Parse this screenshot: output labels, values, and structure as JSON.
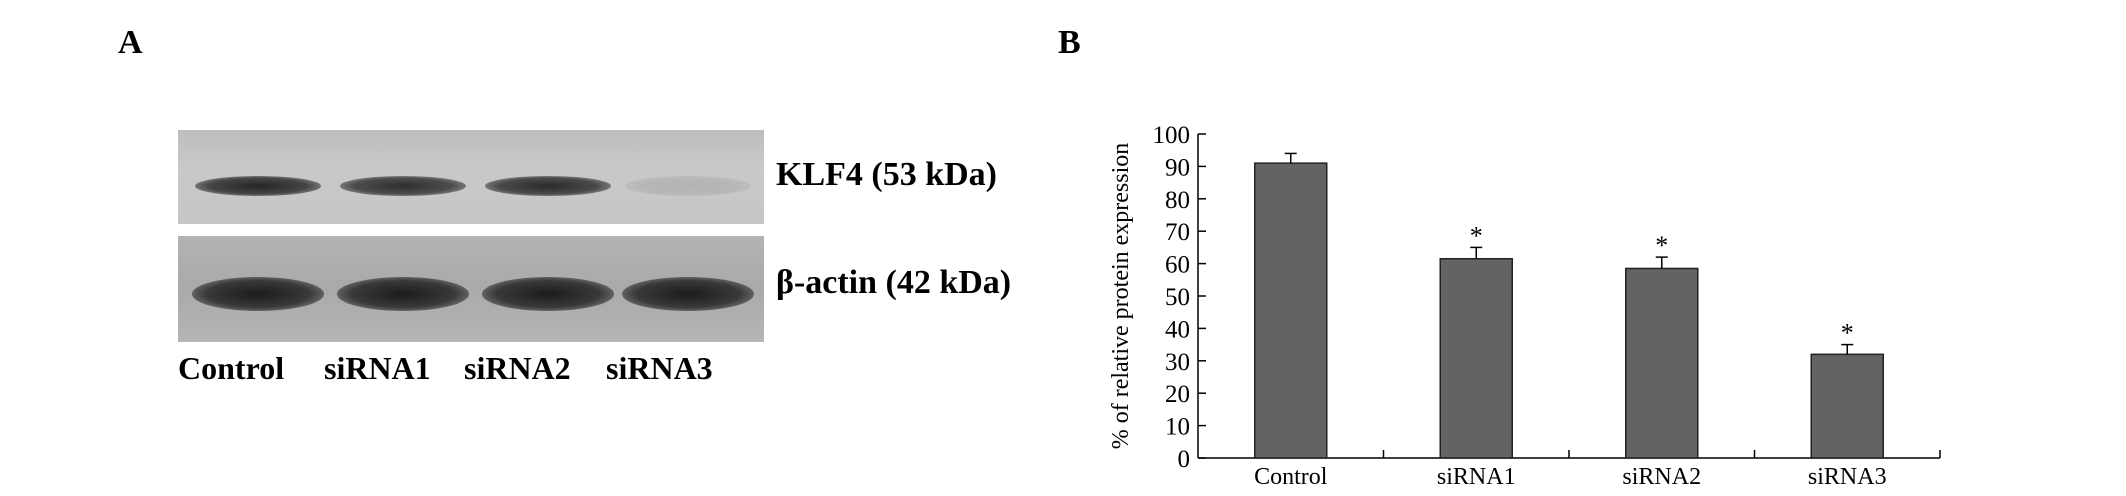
{
  "panel_a": {
    "label": "A",
    "blots": [
      {
        "name": "KLF4 (53 kDa)",
        "band_intensity": [
          0.95,
          0.9,
          0.92,
          0.12
        ]
      },
      {
        "name": "β-actin (42 kDa)",
        "band_intensity": [
          1.0,
          1.0,
          1.0,
          1.0
        ]
      }
    ],
    "lanes": [
      "Control",
      "siRNA1",
      "siRNA2",
      "siRNA3"
    ]
  },
  "panel_b": {
    "label": "B"
  },
  "chart_data": {
    "type": "bar",
    "categories": [
      "Control",
      "siRNA1",
      "siRNA2",
      "siRNA3"
    ],
    "values": [
      91,
      61.5,
      58.5,
      32
    ],
    "errors": [
      3,
      3.5,
      3.5,
      3
    ],
    "annotations": [
      "",
      "*",
      "*",
      "*"
    ],
    "xlabel": "",
    "ylabel": "% of relative protein expression",
    "ylim": [
      0,
      100
    ],
    "yticks": [
      "0",
      "10",
      "20",
      "30",
      "40",
      "50",
      "60",
      "70",
      "80",
      "90",
      "100"
    ],
    "bar_color": "#636363",
    "grid": false,
    "legend": "none"
  }
}
